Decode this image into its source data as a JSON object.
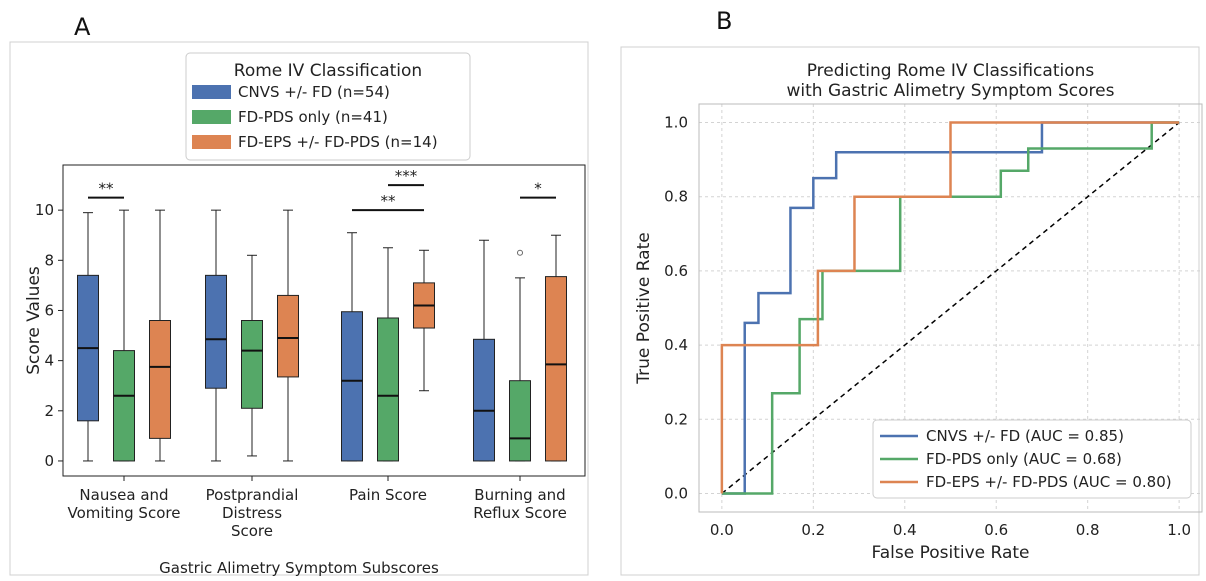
{
  "figure": {
    "panels": [
      {
        "letter": "A"
      },
      {
        "letter": "B"
      }
    ]
  },
  "chart_data": [
    {
      "type": "box",
      "title": "",
      "xlabel": "Gastric Alimetry Symptom Subscores",
      "ylabel": "Score Values",
      "ylim": [
        -0.6,
        11.8
      ],
      "yticks": [
        "0",
        "2",
        "4",
        "6",
        "8",
        "10"
      ],
      "grid": false,
      "legend": {
        "title": "Rome IV Classification",
        "placement": "top-center"
      },
      "categories": [
        "Nausea and Vomiting Score",
        "Postprandial Distress Score",
        "Pain Score",
        "Burning and Reflux Score"
      ],
      "category_label_lines": [
        [
          "Nausea and",
          "Vomiting Score"
        ],
        [
          "Postprandial",
          "Distress",
          "Score"
        ],
        [
          "Pain Score"
        ],
        [
          "Burning and",
          "Reflux Score"
        ]
      ],
      "series": [
        {
          "name": "CNVS +/- FD (n=54)",
          "color": "#4c72b0",
          "boxes": [
            {
              "whislo": 0.0,
              "q1": 1.6,
              "med": 4.5,
              "q3": 7.4,
              "whishi": 9.9,
              "fliers": []
            },
            {
              "whislo": 0.0,
              "q1": 2.9,
              "med": 4.85,
              "q3": 7.4,
              "whishi": 10.0,
              "fliers": []
            },
            {
              "whislo": 0.0,
              "q1": 0.0,
              "med": 3.2,
              "q3": 5.95,
              "whishi": 9.1,
              "fliers": []
            },
            {
              "whislo": 0.0,
              "q1": 0.0,
              "med": 2.0,
              "q3": 4.85,
              "whishi": 8.8,
              "fliers": []
            }
          ]
        },
        {
          "name": "FD-PDS only (n=41)",
          "color": "#55a868",
          "boxes": [
            {
              "whislo": 0.0,
              "q1": 0.0,
              "med": 2.6,
              "q3": 4.4,
              "whishi": 10.0,
              "fliers": []
            },
            {
              "whislo": 0.2,
              "q1": 2.1,
              "med": 4.4,
              "q3": 5.6,
              "whishi": 8.2,
              "fliers": []
            },
            {
              "whislo": 0.0,
              "q1": 0.0,
              "med": 2.6,
              "q3": 5.7,
              "whishi": 8.5,
              "fliers": []
            },
            {
              "whislo": 0.0,
              "q1": 0.0,
              "med": 0.9,
              "q3": 3.2,
              "whishi": 7.3,
              "fliers": [
                8.3
              ]
            }
          ]
        },
        {
          "name": "FD-EPS +/- FD-PDS (n=14)",
          "color": "#dd8452",
          "boxes": [
            {
              "whislo": 0.0,
              "q1": 0.9,
              "med": 3.75,
              "q3": 5.6,
              "whishi": 10.0,
              "fliers": []
            },
            {
              "whislo": 0.0,
              "q1": 3.35,
              "med": 4.9,
              "q3": 6.6,
              "whishi": 10.0,
              "fliers": []
            },
            {
              "whislo": 2.8,
              "q1": 5.3,
              "med": 6.2,
              "q3": 7.1,
              "whishi": 8.4,
              "fliers": []
            },
            {
              "whislo": 0.0,
              "q1": 0.0,
              "med": 3.85,
              "q3": 7.35,
              "whishi": 9.0,
              "fliers": []
            }
          ]
        }
      ],
      "annotations": [
        {
          "text": "**",
          "category": 0,
          "from_series": 0,
          "to_series": 1,
          "y": 10.5
        },
        {
          "text": "**",
          "category": 2,
          "from_series": 0,
          "to_series": 2,
          "y": 10.0
        },
        {
          "text": "***",
          "category": 2,
          "from_series": 1,
          "to_series": 2,
          "y": 11.0
        },
        {
          "text": "*",
          "category": 3,
          "from_series": 1,
          "to_series": 2,
          "y": 10.5
        }
      ]
    },
    {
      "type": "line",
      "title": "Predicting Rome IV Classifications\nwith Gastric Alimetry Symptom Scores",
      "title_lines": [
        "Predicting Rome IV Classifications",
        "with Gastric Alimetry Symptom Scores"
      ],
      "xlabel": "False Positive Rate",
      "ylabel": "True Positive Rate",
      "xlim": [
        -0.05,
        1.05
      ],
      "ylim": [
        -0.05,
        1.05
      ],
      "xticks": [
        "0.0",
        "0.2",
        "0.4",
        "0.6",
        "0.8",
        "1.0"
      ],
      "yticks": [
        "0.0",
        "0.2",
        "0.4",
        "0.6",
        "0.8",
        "1.0"
      ],
      "grid": true,
      "legend": {
        "placement": "bottom-right"
      },
      "series": [
        {
          "name": "CNVS +/- FD (AUC = 0.85)",
          "color": "#4c72b0",
          "x": [
            0,
            0.05,
            0.05,
            0.08,
            0.08,
            0.11,
            0.11,
            0.15,
            0.15,
            0.2,
            0.2,
            0.25,
            0.25,
            0.7,
            0.7,
            1.0
          ],
          "y": [
            0,
            0,
            0.46,
            0.46,
            0.54,
            0.54,
            0.54,
            0.54,
            0.77,
            0.77,
            0.85,
            0.85,
            0.92,
            0.92,
            1.0,
            1.0
          ]
        },
        {
          "name": "FD-PDS only (AUC = 0.68)",
          "color": "#55a868",
          "x": [
            0,
            0.11,
            0.11,
            0.17,
            0.17,
            0.22,
            0.22,
            0.39,
            0.39,
            0.61,
            0.61,
            0.67,
            0.67,
            0.94,
            0.94,
            1.0
          ],
          "y": [
            0,
            0,
            0.27,
            0.27,
            0.47,
            0.47,
            0.6,
            0.6,
            0.8,
            0.8,
            0.87,
            0.87,
            0.93,
            0.93,
            1.0,
            1.0
          ]
        },
        {
          "name": "FD-EPS +/- FD-PDS (AUC = 0.80)",
          "color": "#dd8452",
          "x": [
            0,
            0,
            0.21,
            0.21,
            0.29,
            0.29,
            0.5,
            0.5,
            1.0
          ],
          "y": [
            0,
            0.4,
            0.4,
            0.6,
            0.6,
            0.8,
            0.8,
            1.0,
            1.0
          ]
        },
        {
          "name": "",
          "color": "#000000",
          "dashed": true,
          "x": [
            0,
            1
          ],
          "y": [
            0,
            1
          ]
        }
      ]
    }
  ]
}
